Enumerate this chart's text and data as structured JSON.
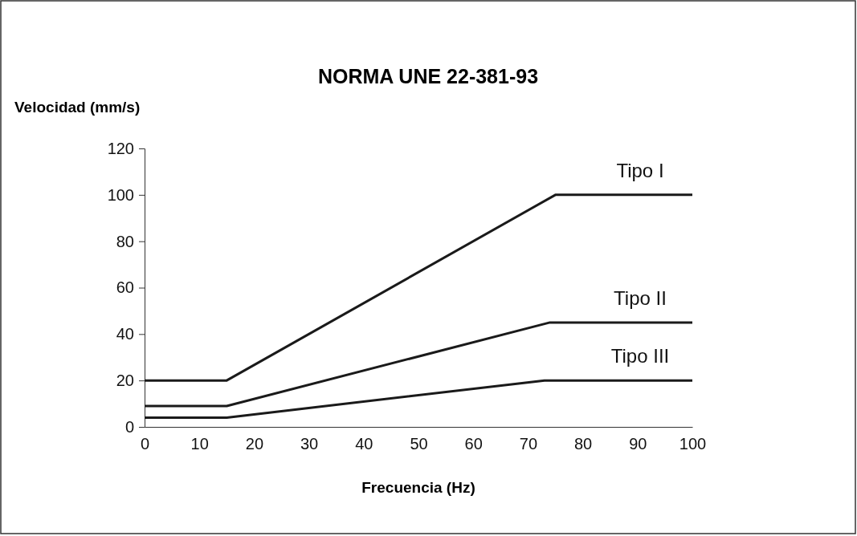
{
  "chart_data": {
    "type": "line",
    "title": "NORMA UNE 22-381-93",
    "ylabel": "Velocidad (mm/s)",
    "xlabel": "Frecuencia (Hz)",
    "xlim": [
      0,
      100
    ],
    "xticks": [
      0,
      10,
      20,
      30,
      40,
      50,
      60,
      70,
      80,
      90,
      100
    ],
    "ylim": [
      0,
      120
    ],
    "yticks": [
      0,
      20,
      40,
      60,
      80,
      100,
      120
    ],
    "grid": false,
    "marker": "none",
    "line_style": "solid",
    "series": [
      {
        "name": "Tipo I",
        "color": "#1a1a1a",
        "x": [
          0,
          15,
          75,
          100
        ],
        "values": [
          20,
          20,
          100,
          100
        ]
      },
      {
        "name": "Tipo II",
        "color": "#1a1a1a",
        "x": [
          0,
          15,
          74,
          100
        ],
        "values": [
          9,
          9,
          45,
          45
        ]
      },
      {
        "name": "Tipo III",
        "color": "#1a1a1a",
        "x": [
          0,
          15,
          73,
          100
        ],
        "values": [
          4,
          4,
          20,
          20
        ]
      }
    ]
  }
}
